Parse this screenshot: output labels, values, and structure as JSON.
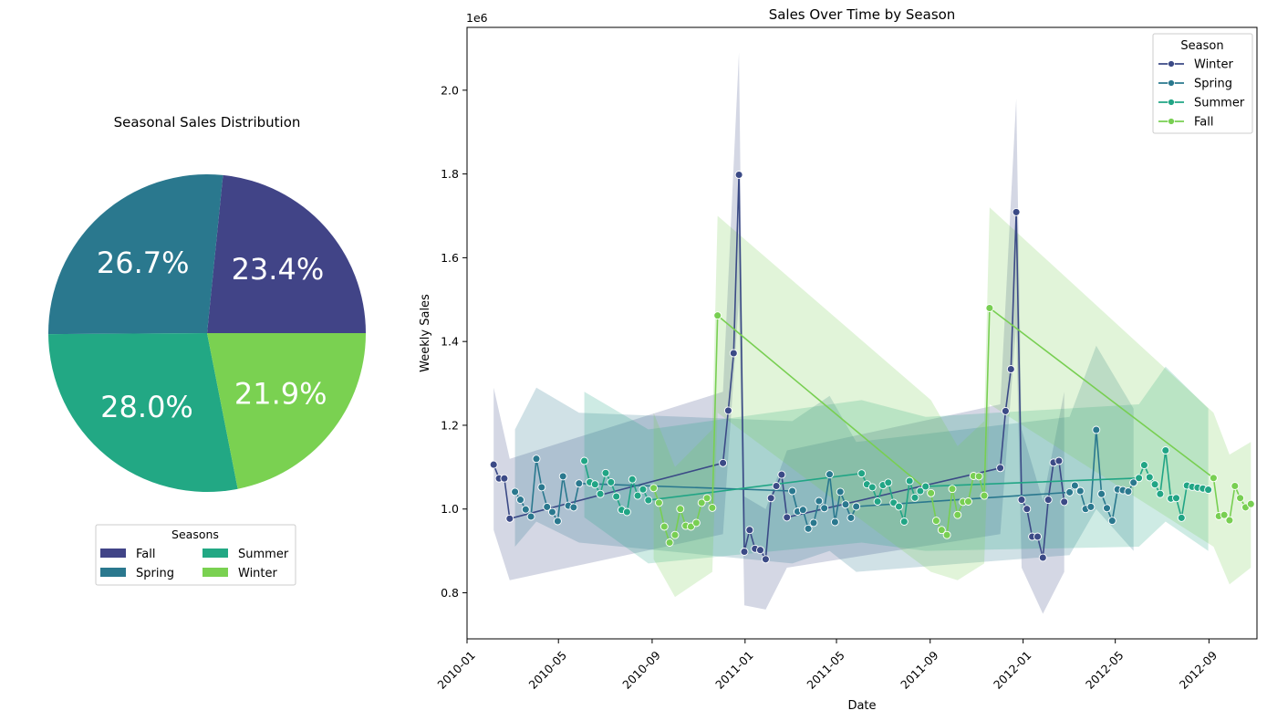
{
  "chart_data": [
    {
      "type": "pie",
      "title": "Seasonal Sales Distribution",
      "slices": [
        {
          "label": "Fall",
          "value": 23.4,
          "text": "23.4%",
          "color": "#414487"
        },
        {
          "label": "Spring",
          "value": 26.7,
          "text": "26.7%",
          "color": "#2a788e"
        },
        {
          "label": "Summer",
          "value": 28.0,
          "text": "28.0%",
          "color": "#22a884"
        },
        {
          "label": "Winter",
          "value": 21.9,
          "text": "21.9%",
          "color": "#7ad151"
        }
      ],
      "legend": {
        "title": "Seasons",
        "placement": "bottom-center",
        "columns": 2
      }
    },
    {
      "type": "line",
      "title": "Sales Over Time by Season",
      "xlabel": "Date",
      "ylabel": "Weekly Sales",
      "y_offset_label": "1e6",
      "x_ticks": [
        "2010-01",
        "2010-05",
        "2010-09",
        "2011-01",
        "2011-05",
        "2011-09",
        "2012-01",
        "2012-05",
        "2012-09"
      ],
      "y_ticks": [
        "0.8",
        "1.0",
        "1.2",
        "1.4",
        "1.6",
        "1.8",
        "2.0"
      ],
      "ylim": [
        0.69,
        2.15
      ],
      "xlim": [
        "2010-01-01",
        "2012-11-03"
      ],
      "grid": false,
      "legend": {
        "title": "Season",
        "placement": "top-right"
      },
      "series": [
        {
          "name": "Winter",
          "color": "#3b4a86",
          "points": [
            [
              "2010-02-05",
              1.106
            ],
            [
              "2010-02-12",
              1.073
            ],
            [
              "2010-02-19",
              1.073
            ],
            [
              "2010-02-26",
              0.977
            ],
            [
              "2010-12-03",
              1.11
            ],
            [
              "2010-12-10",
              1.235
            ],
            [
              "2010-12-17",
              1.372
            ],
            [
              "2010-12-24",
              1.798
            ],
            [
              "2010-12-31",
              0.898
            ],
            [
              "2011-01-07",
              0.95
            ],
            [
              "2011-01-14",
              0.905
            ],
            [
              "2011-01-21",
              0.902
            ],
            [
              "2011-01-28",
              0.88
            ],
            [
              "2011-02-04",
              1.026
            ],
            [
              "2011-02-11",
              1.055
            ],
            [
              "2011-02-18",
              1.082
            ],
            [
              "2011-02-25",
              0.98
            ],
            [
              "2011-12-02",
              1.098
            ],
            [
              "2011-12-09",
              1.234
            ],
            [
              "2011-12-16",
              1.334
            ],
            [
              "2011-12-23",
              1.709
            ],
            [
              "2011-12-30",
              1.022
            ],
            [
              "2012-01-06",
              1.0
            ],
            [
              "2012-01-13",
              0.934
            ],
            [
              "2012-01-20",
              0.934
            ],
            [
              "2012-01-27",
              0.884
            ],
            [
              "2012-02-03",
              1.022
            ],
            [
              "2012-02-10",
              1.111
            ],
            [
              "2012-02-17",
              1.115
            ],
            [
              "2012-02-24",
              1.017
            ]
          ],
          "ci": [
            [
              "2010-02-05",
              0.95,
              1.29
            ],
            [
              "2010-02-26",
              0.83,
              1.12
            ],
            [
              "2010-12-03",
              0.94,
              1.28
            ],
            [
              "2010-12-24",
              1.5,
              2.09
            ],
            [
              "2010-12-31",
              0.77,
              1.03
            ],
            [
              "2011-01-28",
              0.76,
              1.0
            ],
            [
              "2011-02-25",
              0.86,
              1.14
            ],
            [
              "2011-12-02",
              0.94,
              1.25
            ],
            [
              "2011-12-23",
              1.44,
              1.98
            ],
            [
              "2011-12-30",
              0.86,
              1.19
            ],
            [
              "2012-01-27",
              0.75,
              1.02
            ],
            [
              "2012-02-24",
              0.85,
              1.28
            ]
          ]
        },
        {
          "name": "Spring",
          "color": "#2a788e",
          "points": [
            [
              "2010-03-05",
              1.041
            ],
            [
              "2010-03-12",
              1.022
            ],
            [
              "2010-03-19",
              0.999
            ],
            [
              "2010-03-26",
              0.982
            ],
            [
              "2010-04-02",
              1.12
            ],
            [
              "2010-04-09",
              1.052
            ],
            [
              "2010-04-16",
              1.005
            ],
            [
              "2010-04-23",
              0.993
            ],
            [
              "2010-04-30",
              0.971
            ],
            [
              "2010-05-07",
              1.078
            ],
            [
              "2010-05-14",
              1.008
            ],
            [
              "2010-05-21",
              1.004
            ],
            [
              "2010-05-28",
              1.061
            ],
            [
              "2011-03-04",
              1.043
            ],
            [
              "2011-03-11",
              0.994
            ],
            [
              "2011-03-18",
              0.998
            ],
            [
              "2011-03-25",
              0.953
            ],
            [
              "2011-04-01",
              0.967
            ],
            [
              "2011-04-08",
              1.019
            ],
            [
              "2011-04-15",
              1.002
            ],
            [
              "2011-04-22",
              1.083
            ],
            [
              "2011-04-29",
              0.969
            ],
            [
              "2011-05-06",
              1.041
            ],
            [
              "2011-05-13",
              1.011
            ],
            [
              "2011-05-20",
              0.979
            ],
            [
              "2011-05-27",
              1.006
            ],
            [
              "2012-03-02",
              1.04
            ],
            [
              "2012-03-09",
              1.056
            ],
            [
              "2012-03-16",
              1.043
            ],
            [
              "2012-03-23",
              1.0
            ],
            [
              "2012-03-30",
              1.005
            ],
            [
              "2012-04-06",
              1.189
            ],
            [
              "2012-04-13",
              1.036
            ],
            [
              "2012-04-20",
              1.002
            ],
            [
              "2012-04-27",
              0.972
            ],
            [
              "2012-05-04",
              1.047
            ],
            [
              "2012-05-11",
              1.045
            ],
            [
              "2012-05-18",
              1.042
            ],
            [
              "2012-05-25",
              1.063
            ]
          ],
          "ci": [
            [
              "2010-03-05",
              0.91,
              1.19
            ],
            [
              "2010-04-02",
              0.97,
              1.29
            ],
            [
              "2010-05-28",
              0.92,
              1.23
            ],
            [
              "2011-03-04",
              0.87,
              1.21
            ],
            [
              "2011-04-22",
              0.9,
              1.27
            ],
            [
              "2011-05-27",
              0.85,
              1.16
            ],
            [
              "2012-03-02",
              0.89,
              1.22
            ],
            [
              "2012-04-06",
              1.0,
              1.39
            ],
            [
              "2012-05-25",
              0.9,
              1.24
            ]
          ]
        },
        {
          "name": "Summer",
          "color": "#21a585",
          "points": [
            [
              "2010-06-04",
              1.115
            ],
            [
              "2010-06-11",
              1.064
            ],
            [
              "2010-06-18",
              1.059
            ],
            [
              "2010-06-25",
              1.036
            ],
            [
              "2010-07-02",
              1.086
            ],
            [
              "2010-07-09",
              1.064
            ],
            [
              "2010-07-16",
              1.03
            ],
            [
              "2010-07-23",
              0.998
            ],
            [
              "2010-07-30",
              0.993
            ],
            [
              "2010-08-06",
              1.071
            ],
            [
              "2010-08-13",
              1.032
            ],
            [
              "2010-08-20",
              1.047
            ],
            [
              "2010-08-27",
              1.021
            ],
            [
              "2011-06-03",
              1.085
            ],
            [
              "2011-06-10",
              1.059
            ],
            [
              "2011-06-17",
              1.052
            ],
            [
              "2011-06-24",
              1.018
            ],
            [
              "2011-07-01",
              1.057
            ],
            [
              "2011-07-08",
              1.063
            ],
            [
              "2011-07-15",
              1.015
            ],
            [
              "2011-07-22",
              1.006
            ],
            [
              "2011-07-29",
              0.97
            ],
            [
              "2011-08-05",
              1.067
            ],
            [
              "2011-08-12",
              1.027
            ],
            [
              "2011-08-19",
              1.043
            ],
            [
              "2011-08-26",
              1.054
            ],
            [
              "2012-06-01",
              1.074
            ],
            [
              "2012-06-08",
              1.105
            ],
            [
              "2012-06-15",
              1.076
            ],
            [
              "2012-06-22",
              1.059
            ],
            [
              "2012-06-29",
              1.036
            ],
            [
              "2012-07-06",
              1.14
            ],
            [
              "2012-07-13",
              1.025
            ],
            [
              "2012-07-20",
              1.026
            ],
            [
              "2012-07-27",
              0.979
            ],
            [
              "2012-08-03",
              1.056
            ],
            [
              "2012-08-10",
              1.053
            ],
            [
              "2012-08-17",
              1.051
            ],
            [
              "2012-08-24",
              1.049
            ],
            [
              "2012-08-31",
              1.046
            ]
          ],
          "ci": [
            [
              "2010-06-04",
              0.98,
              1.28
            ],
            [
              "2010-08-27",
              0.87,
              1.19
            ],
            [
              "2011-06-03",
              0.92,
              1.26
            ],
            [
              "2011-08-26",
              0.9,
              1.22
            ],
            [
              "2012-06-01",
              0.91,
              1.25
            ],
            [
              "2012-07-06",
              0.97,
              1.34
            ],
            [
              "2012-08-31",
              0.9,
              1.24
            ]
          ]
        },
        {
          "name": "Fall",
          "color": "#78cf52",
          "points": [
            [
              "2010-09-03",
              1.05
            ],
            [
              "2010-09-10",
              1.015
            ],
            [
              "2010-09-17",
              0.958
            ],
            [
              "2010-09-24",
              0.92
            ],
            [
              "2010-10-01",
              0.938
            ],
            [
              "2010-10-08",
              1.0
            ],
            [
              "2010-10-15",
              0.96
            ],
            [
              "2010-10-22",
              0.958
            ],
            [
              "2010-10-29",
              0.967
            ],
            [
              "2010-11-05",
              1.015
            ],
            [
              "2010-11-12",
              1.026
            ],
            [
              "2010-11-19",
              1.003
            ],
            [
              "2010-11-26",
              1.462
            ],
            [
              "2011-09-02",
              1.038
            ],
            [
              "2011-09-09",
              0.972
            ],
            [
              "2011-09-16",
              0.95
            ],
            [
              "2011-09-23",
              0.938
            ],
            [
              "2011-09-30",
              1.048
            ],
            [
              "2011-10-07",
              0.986
            ],
            [
              "2011-10-14",
              1.017
            ],
            [
              "2011-10-21",
              1.018
            ],
            [
              "2011-10-28",
              1.079
            ],
            [
              "2011-11-04",
              1.078
            ],
            [
              "2011-11-11",
              1.032
            ],
            [
              "2011-11-18",
              1.48
            ],
            [
              "2012-09-07",
              1.074
            ],
            [
              "2012-09-14",
              0.983
            ],
            [
              "2012-09-21",
              0.986
            ],
            [
              "2012-09-28",
              0.973
            ],
            [
              "2012-10-05",
              1.055
            ],
            [
              "2012-10-12",
              1.026
            ],
            [
              "2012-10-19",
              1.004
            ],
            [
              "2012-10-26",
              1.012
            ]
          ],
          "ci": [
            [
              "2010-09-03",
              0.88,
              1.23
            ],
            [
              "2010-10-01",
              0.79,
              1.1
            ],
            [
              "2010-11-19",
              0.85,
              1.19
            ],
            [
              "2010-11-26",
              1.23,
              1.7
            ],
            [
              "2011-09-02",
              0.85,
              1.26
            ],
            [
              "2011-10-07",
              0.83,
              1.15
            ],
            [
              "2011-11-11",
              0.87,
              1.21
            ],
            [
              "2011-11-18",
              1.25,
              1.72
            ],
            [
              "2012-09-07",
              0.91,
              1.23
            ],
            [
              "2012-09-28",
              0.82,
              1.13
            ],
            [
              "2012-10-26",
              0.86,
              1.16
            ]
          ]
        }
      ]
    }
  ]
}
